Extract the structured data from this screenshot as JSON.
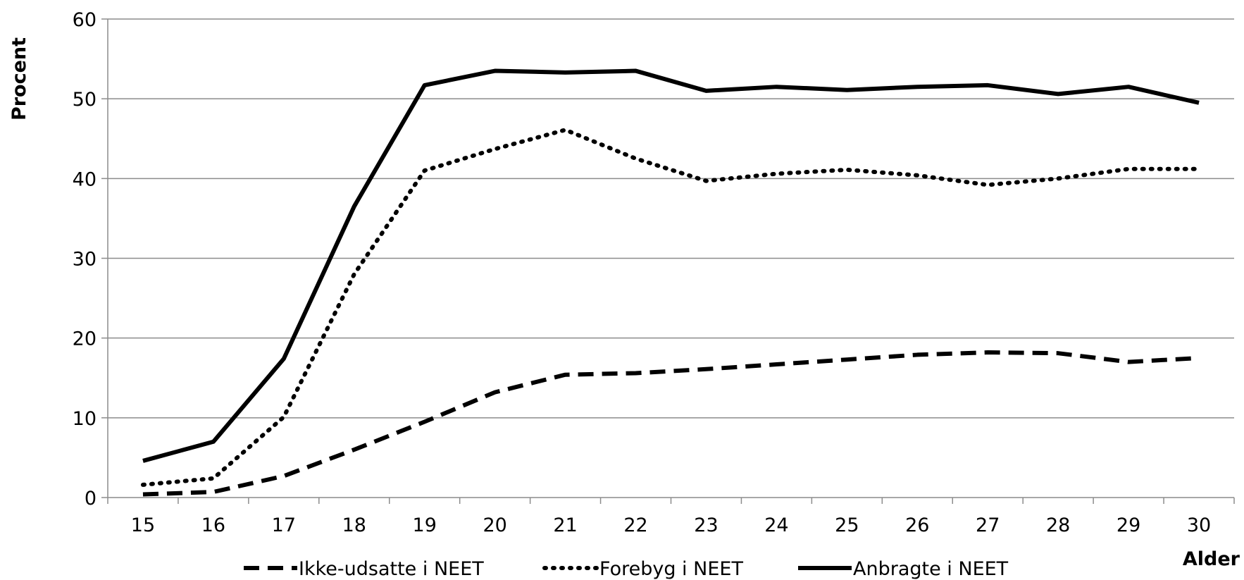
{
  "chart_data": {
    "type": "line",
    "title": "",
    "xlabel": "Alder",
    "ylabel": "Procent",
    "ylim": [
      0,
      60
    ],
    "yticks": [
      0,
      10,
      20,
      30,
      40,
      50,
      60
    ],
    "grid": true,
    "legend_position": "bottom",
    "categories": [
      "15",
      "16",
      "17",
      "18",
      "19",
      "20",
      "21",
      "22",
      "23",
      "24",
      "25",
      "26",
      "27",
      "28",
      "29",
      "30"
    ],
    "series": [
      {
        "name": "Ikke-udsatte i NEET",
        "style": "dashed",
        "color": "#000000",
        "values": [
          0.4,
          0.7,
          2.7,
          6.0,
          9.5,
          13.2,
          15.4,
          15.6,
          16.1,
          16.7,
          17.3,
          17.9,
          18.2,
          18.1,
          17.0,
          17.5
        ]
      },
      {
        "name": "Forebyg i NEET",
        "style": "dotted",
        "color": "#000000",
        "values": [
          1.6,
          2.4,
          10.1,
          28.0,
          41.0,
          43.7,
          46.1,
          42.5,
          39.7,
          40.6,
          41.1,
          40.4,
          39.2,
          40.0,
          41.2,
          41.2
        ]
      },
      {
        "name": "Anbragte i NEET",
        "style": "solid",
        "color": "#000000",
        "values": [
          4.6,
          7.0,
          17.4,
          36.5,
          51.7,
          53.5,
          53.3,
          53.5,
          51.0,
          51.5,
          51.1,
          51.5,
          51.7,
          50.6,
          51.5,
          49.5
        ]
      }
    ]
  }
}
